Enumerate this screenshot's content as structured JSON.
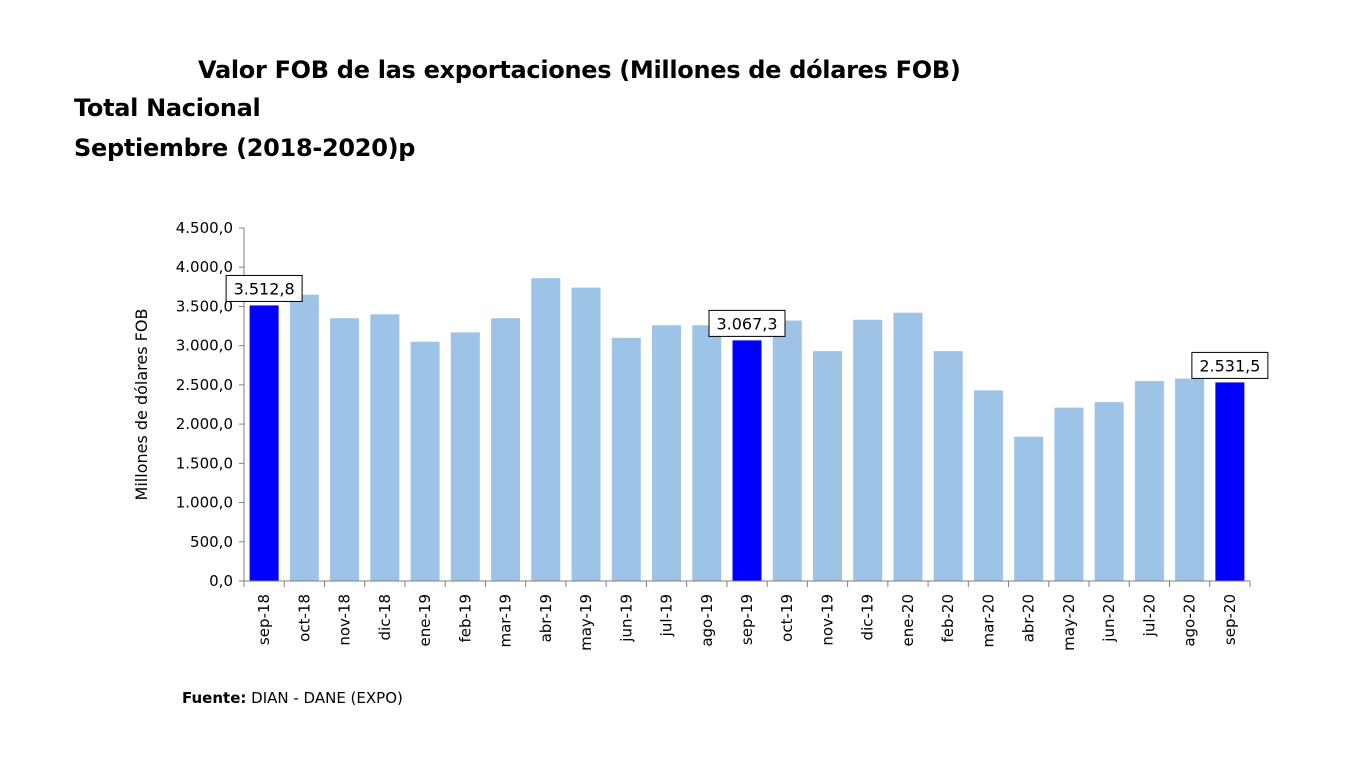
{
  "chart_data": {
    "type": "bar",
    "title": "Valor FOB de las exportaciones (Millones de dólares FOB)",
    "subtitle_1": "Total Nacional",
    "subtitle_2": "Septiembre (2018-2020)p",
    "ylabel": "Millones de dólares FOB",
    "ylim": [
      0,
      4500
    ],
    "yticks": [
      "0,0",
      "500,0",
      "1.000,0",
      "1.500,0",
      "2.000,0",
      "2.500,0",
      "3.000,0",
      "3.500,0",
      "4.000,0",
      "4.500,0"
    ],
    "categories": [
      "sep-18",
      "oct-18",
      "nov-18",
      "dic-18",
      "ene-19",
      "feb-19",
      "mar-19",
      "abr-19",
      "may-19",
      "jun-19",
      "jul-19",
      "ago-19",
      "sep-19",
      "oct-19",
      "nov-19",
      "dic-19",
      "ene-20",
      "feb-20",
      "mar-20",
      "abr-20",
      "may-20",
      "jun-20",
      "jul-20",
      "ago-20",
      "sep-20"
    ],
    "values": [
      3512.8,
      3650,
      3350,
      3400,
      3050,
      3170,
      3350,
      3860,
      3740,
      3100,
      3260,
      3260,
      3067.3,
      3320,
      2930,
      3330,
      3420,
      2930,
      2430,
      1840,
      2210,
      2280,
      2550,
      2580,
      2531.5
    ],
    "highlighted": [
      0,
      12,
      24
    ],
    "data_labels": [
      {
        "index": 0,
        "text": "3.512,8"
      },
      {
        "index": 12,
        "text": "3.067,3"
      },
      {
        "index": 24,
        "text": "2.531,5"
      }
    ],
    "colors": {
      "bar": "#9dc3e6",
      "highlight": "#0000ff",
      "label_border": "#000000"
    }
  },
  "source": {
    "label": "Fuente:",
    "text": " DIAN - DANE (EXPO)"
  }
}
